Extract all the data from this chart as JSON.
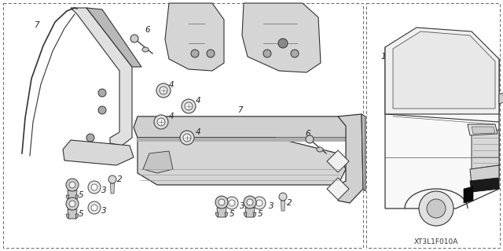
{
  "bg_color": "#ffffff",
  "text_color": "#222222",
  "watermark": "XT3L1F010A",
  "watermark_fontsize": 6.5,
  "label_fontsize": 7.5,
  "dashed_color": "#666666",
  "part_color": "#cccccc",
  "line_color": "#333333"
}
